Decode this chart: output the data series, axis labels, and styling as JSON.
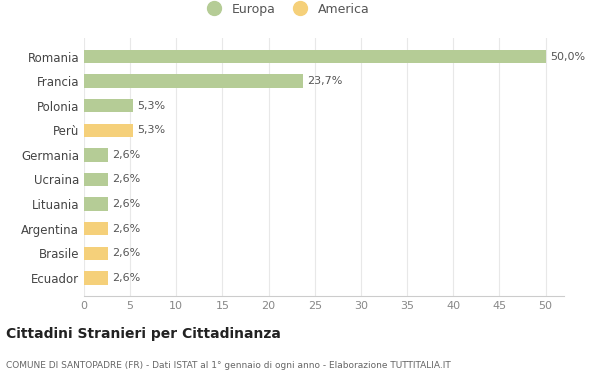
{
  "categories": [
    "Romania",
    "Francia",
    "Polonia",
    "Perù",
    "Germania",
    "Ucraina",
    "Lituania",
    "Argentina",
    "Brasile",
    "Ecuador"
  ],
  "values": [
    50.0,
    23.7,
    5.3,
    5.3,
    2.6,
    2.6,
    2.6,
    2.6,
    2.6,
    2.6
  ],
  "labels": [
    "50,0%",
    "23,7%",
    "5,3%",
    "5,3%",
    "2,6%",
    "2,6%",
    "2,6%",
    "2,6%",
    "2,6%",
    "2,6%"
  ],
  "colors": [
    "#b5cc96",
    "#b5cc96",
    "#b5cc96",
    "#f5d07a",
    "#b5cc96",
    "#b5cc96",
    "#b5cc96",
    "#f5d07a",
    "#f5d07a",
    "#f5d07a"
  ],
  "europa_color": "#b5cc96",
  "america_color": "#f5d07a",
  "title": "Cittadini Stranieri per Cittadinanza",
  "subtitle": "COMUNE DI SANTOPADRE (FR) - Dati ISTAT al 1° gennaio di ogni anno - Elaborazione TUTTITALIA.IT",
  "xlim": [
    0,
    52
  ],
  "xticks": [
    0,
    5,
    10,
    15,
    20,
    25,
    30,
    35,
    40,
    45,
    50
  ],
  "background_color": "#ffffff",
  "grid_color": "#e8e8e8",
  "bar_height": 0.55,
  "label_fontsize": 8,
  "ytick_fontsize": 8.5,
  "xtick_fontsize": 8
}
